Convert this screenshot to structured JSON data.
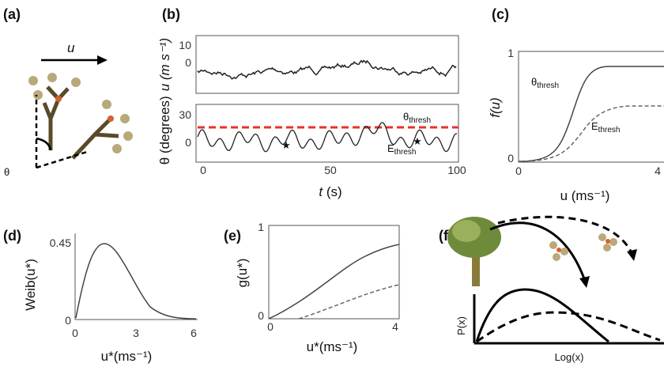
{
  "panels": {
    "a": {
      "label": "(a)",
      "wind": "u",
      "angle": "θ"
    },
    "b": {
      "label": "(b)",
      "y_label_theta": "θ (degrees)",
      "y_label_u": "u (m s⁻¹)",
      "top_ticks": [
        "10",
        "0"
      ],
      "bottom_ticks": [
        "30",
        "0"
      ],
      "x_ticks": [
        "0",
        "50",
        "100"
      ],
      "x_label_var": "t",
      "x_label_unit": " (s)",
      "theta_thresh": {
        "base": "θ",
        "sub": "thresh"
      },
      "e_thresh": {
        "base": "E",
        "sub": "thresh"
      }
    },
    "c": {
      "label": "(c)",
      "y_ticks": [
        "1",
        "0"
      ],
      "x_ticks": [
        "0",
        "4"
      ],
      "y_label": "f(u)",
      "x_label": "u (ms⁻¹)",
      "theta_thresh": {
        "base": "θ",
        "sub": "thresh"
      },
      "e_thresh": {
        "base": "E",
        "sub": "thresh"
      }
    },
    "d": {
      "label": "(d)",
      "y_ticks": [
        "0.45",
        "0"
      ],
      "x_ticks": [
        "0",
        "3",
        "6"
      ],
      "y_label": "Weib(u*)",
      "x_label": "u*(ms⁻¹)"
    },
    "e": {
      "label": "(e)",
      "y_ticks": [
        "1",
        "0"
      ],
      "x_ticks": [
        "0",
        "4"
      ],
      "y_label": "g(u*)",
      "x_label": "u*(ms⁻¹)"
    },
    "f": {
      "label": "(f)",
      "y_label": "P(x)",
      "x_label": "Log(x)"
    }
  }
}
